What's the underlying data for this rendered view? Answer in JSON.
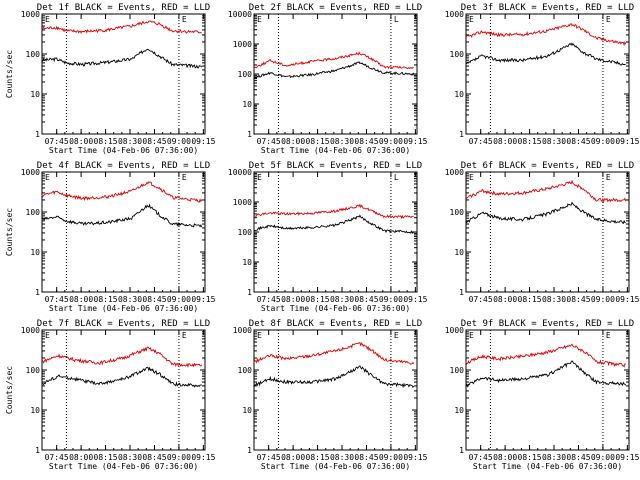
{
  "colors": {
    "events": "#000000",
    "lld": "#e00000",
    "axes": "#000000"
  },
  "chart_data": [
    {
      "type": "line",
      "title": "Det 1f BLACK = Events, RED = LLD",
      "xlabel": "Start Time (04-Feb-06 07:36:00)",
      "ylabel": "Counts/sec",
      "x_ticks": [
        "07:45",
        "08:00",
        "08:15",
        "08:30",
        "08:45",
        "09:00",
        "09:15"
      ],
      "y_ticks": [
        "1",
        "10",
        "100",
        "1000"
      ],
      "ylim": [
        1,
        1000
      ],
      "log_y": true,
      "markers": [
        "07:51",
        "09:00"
      ],
      "corner_labels": [
        "E",
        "E"
      ],
      "series": [
        {
          "name": "Events",
          "values": [
            [
              0,
              70
            ],
            [
              9,
              75
            ],
            [
              15,
              60
            ],
            [
              25,
              55
            ],
            [
              40,
              62
            ],
            [
              55,
              75
            ],
            [
              65,
              140
            ],
            [
              72,
              90
            ],
            [
              80,
              55
            ],
            [
              98,
              48
            ]
          ]
        },
        {
          "name": "LLD",
          "values": [
            [
              0,
              430
            ],
            [
              9,
              460
            ],
            [
              15,
              380
            ],
            [
              25,
              360
            ],
            [
              40,
              400
            ],
            [
              55,
              500
            ],
            [
              65,
              650
            ],
            [
              72,
              560
            ],
            [
              80,
              380
            ],
            [
              98,
              350
            ]
          ]
        }
      ]
    },
    {
      "type": "line",
      "title": "Det 2f BLACK = Events, RED = LLD",
      "xlabel": "Start Time (04-Feb-06 07:36:00)",
      "ylabel": "",
      "x_ticks": [
        "07:45",
        "08:00",
        "08:15",
        "08:30",
        "08:45",
        "09:00",
        "09:15"
      ],
      "y_ticks": [
        "1",
        "10",
        "100",
        "1000",
        "10000"
      ],
      "ylim": [
        1,
        10000
      ],
      "log_y": true,
      "markers": [
        "07:51",
        "09:00"
      ],
      "corner_labels": [
        "E",
        "L"
      ],
      "series": [
        {
          "name": "Events",
          "values": [
            [
              0,
              75
            ],
            [
              10,
              110
            ],
            [
              20,
              80
            ],
            [
              35,
              95
            ],
            [
              50,
              130
            ],
            [
              65,
              240
            ],
            [
              72,
              160
            ],
            [
              80,
              110
            ],
            [
              98,
              100
            ]
          ]
        },
        {
          "name": "LLD",
          "values": [
            [
              0,
              160
            ],
            [
              10,
              280
            ],
            [
              20,
              190
            ],
            [
              35,
              260
            ],
            [
              50,
              330
            ],
            [
              65,
              500
            ],
            [
              72,
              320
            ],
            [
              80,
              170
            ],
            [
              98,
              160
            ]
          ]
        }
      ]
    },
    {
      "type": "line",
      "title": "Det 3f BLACK = Events, RED = LLD",
      "xlabel": "",
      "ylabel": "",
      "x_ticks": [
        "07:45",
        "08:00",
        "08:15",
        "08:30",
        "08:45",
        "09:00",
        "09:15"
      ],
      "y_ticks": [
        "1",
        "10",
        "100",
        "1000"
      ],
      "ylim": [
        1,
        1000
      ],
      "log_y": true,
      "markers": [
        "07:51",
        "09:00"
      ],
      "corner_labels": [
        "E",
        "E"
      ],
      "series": [
        {
          "name": "Events",
          "values": [
            [
              0,
              55
            ],
            [
              10,
              90
            ],
            [
              20,
              70
            ],
            [
              35,
              70
            ],
            [
              50,
              90
            ],
            [
              65,
              180
            ],
            [
              72,
              110
            ],
            [
              80,
              75
            ],
            [
              98,
              55
            ]
          ]
        },
        {
          "name": "LLD",
          "values": [
            [
              0,
              260
            ],
            [
              10,
              360
            ],
            [
              20,
              300
            ],
            [
              35,
              310
            ],
            [
              50,
              380
            ],
            [
              65,
              560
            ],
            [
              72,
              400
            ],
            [
              80,
              250
            ],
            [
              98,
              180
            ]
          ]
        }
      ]
    },
    {
      "type": "line",
      "title": "Det 4f BLACK = Events, RED = LLD",
      "xlabel": "Start Time (04-Feb-06 07:36:00)",
      "ylabel": "Counts/sec",
      "x_ticks": [
        "07:45",
        "08:00",
        "08:15",
        "08:30",
        "08:45",
        "09:00",
        "09:15"
      ],
      "y_ticks": [
        "1",
        "10",
        "100",
        "1000"
      ],
      "ylim": [
        1,
        1000
      ],
      "log_y": true,
      "markers": [
        "07:51",
        "09:00"
      ],
      "corner_labels": [
        "E",
        "E"
      ],
      "series": [
        {
          "name": "Events",
          "values": [
            [
              0,
              65
            ],
            [
              9,
              75
            ],
            [
              15,
              60
            ],
            [
              25,
              50
            ],
            [
              40,
              55
            ],
            [
              55,
              70
            ],
            [
              65,
              150
            ],
            [
              72,
              85
            ],
            [
              80,
              50
            ],
            [
              98,
              45
            ]
          ]
        },
        {
          "name": "LLD",
          "values": [
            [
              0,
              260
            ],
            [
              9,
              320
            ],
            [
              15,
              260
            ],
            [
              25,
              220
            ],
            [
              40,
              240
            ],
            [
              55,
              330
            ],
            [
              65,
              560
            ],
            [
              72,
              400
            ],
            [
              80,
              230
            ],
            [
              98,
              190
            ]
          ]
        }
      ]
    },
    {
      "type": "line",
      "title": "Det 5f BLACK = Events, RED = LLD",
      "xlabel": "Start Time (04-Feb-06 07:36:00)",
      "ylabel": "",
      "x_ticks": [
        "07:45",
        "08:00",
        "08:15",
        "08:30",
        "08:45",
        "09:00",
        "09:15"
      ],
      "y_ticks": [
        "1",
        "10",
        "100",
        "1000",
        "10000"
      ],
      "ylim": [
        1,
        10000
      ],
      "log_y": true,
      "markers": [
        "07:51",
        "09:00"
      ],
      "corner_labels": [
        "E",
        "L"
      ],
      "series": [
        {
          "name": "Events",
          "values": [
            [
              0,
              120
            ],
            [
              10,
              160
            ],
            [
              20,
              130
            ],
            [
              35,
              140
            ],
            [
              50,
              170
            ],
            [
              65,
              330
            ],
            [
              72,
              190
            ],
            [
              80,
              110
            ],
            [
              98,
              100
            ]
          ]
        },
        {
          "name": "LLD",
          "values": [
            [
              0,
              360
            ],
            [
              10,
              430
            ],
            [
              20,
              400
            ],
            [
              35,
              420
            ],
            [
              50,
              500
            ],
            [
              65,
              750
            ],
            [
              72,
              520
            ],
            [
              80,
              330
            ],
            [
              98,
              320
            ]
          ]
        }
      ]
    },
    {
      "type": "line",
      "title": "Det 6f BLACK = Events, RED = LLD",
      "xlabel": "",
      "ylabel": "",
      "x_ticks": [
        "07:45",
        "08:00",
        "08:15",
        "08:30",
        "08:45",
        "09:00",
        "09:15"
      ],
      "y_ticks": [
        "1",
        "10",
        "100",
        "1000"
      ],
      "ylim": [
        1,
        1000
      ],
      "log_y": true,
      "markers": [
        "07:51",
        "09:00"
      ],
      "corner_labels": [
        "E",
        "E"
      ],
      "series": [
        {
          "name": "Events",
          "values": [
            [
              0,
              55
            ],
            [
              10,
              95
            ],
            [
              20,
              70
            ],
            [
              35,
              65
            ],
            [
              50,
              90
            ],
            [
              65,
              160
            ],
            [
              72,
              100
            ],
            [
              80,
              65
            ],
            [
              98,
              55
            ]
          ]
        },
        {
          "name": "LLD",
          "values": [
            [
              0,
              220
            ],
            [
              10,
              340
            ],
            [
              20,
              280
            ],
            [
              35,
              300
            ],
            [
              50,
              380
            ],
            [
              65,
              550
            ],
            [
              72,
              380
            ],
            [
              80,
              200
            ],
            [
              98,
              200
            ]
          ]
        }
      ]
    },
    {
      "type": "line",
      "title": "Det 7f BLACK = Events, RED = LLD",
      "xlabel": "Start Time (04-Feb-06 07:36:00)",
      "ylabel": "Counts/sec",
      "x_ticks": [
        "07:45",
        "08:00",
        "08:15",
        "08:30",
        "08:45",
        "09:00",
        "09:15"
      ],
      "y_ticks": [
        "1",
        "10",
        "100",
        "1000"
      ],
      "ylim": [
        1,
        1000
      ],
      "log_y": true,
      "markers": [
        "07:51",
        "09:00"
      ],
      "corner_labels": [
        "E",
        "E"
      ],
      "series": [
        {
          "name": "Events",
          "values": [
            [
              0,
              45
            ],
            [
              10,
              70
            ],
            [
              20,
              60
            ],
            [
              35,
              45
            ],
            [
              50,
              60
            ],
            [
              65,
              110
            ],
            [
              72,
              80
            ],
            [
              80,
              45
            ],
            [
              98,
              40
            ]
          ]
        },
        {
          "name": "LLD",
          "values": [
            [
              0,
              160
            ],
            [
              10,
              230
            ],
            [
              20,
              180
            ],
            [
              35,
              150
            ],
            [
              50,
              200
            ],
            [
              65,
              350
            ],
            [
              72,
              260
            ],
            [
              80,
              140
            ],
            [
              98,
              130
            ]
          ]
        }
      ]
    },
    {
      "type": "line",
      "title": "Det 8f BLACK = Events, RED = LLD",
      "xlabel": "Start Time (04-Feb-06 07:36:00)",
      "ylabel": "",
      "x_ticks": [
        "07:45",
        "08:00",
        "08:15",
        "08:30",
        "08:45",
        "09:00",
        "09:15"
      ],
      "y_ticks": [
        "1",
        "10",
        "100",
        "1000"
      ],
      "ylim": [
        1,
        1000
      ],
      "log_y": true,
      "markers": [
        "07:51",
        "09:00"
      ],
      "corner_labels": [
        "E",
        "E"
      ],
      "series": [
        {
          "name": "Events",
          "values": [
            [
              0,
              40
            ],
            [
              10,
              60
            ],
            [
              20,
              50
            ],
            [
              35,
              50
            ],
            [
              50,
              60
            ],
            [
              65,
              120
            ],
            [
              72,
              75
            ],
            [
              80,
              45
            ],
            [
              98,
              40
            ]
          ]
        },
        {
          "name": "LLD",
          "values": [
            [
              0,
              160
            ],
            [
              10,
              230
            ],
            [
              20,
              190
            ],
            [
              35,
              230
            ],
            [
              50,
              300
            ],
            [
              65,
              460
            ],
            [
              72,
              320
            ],
            [
              80,
              180
            ],
            [
              98,
              150
            ]
          ]
        }
      ]
    },
    {
      "type": "line",
      "title": "Det 9f BLACK = Events, RED = LLD",
      "xlabel": "Start Time (04-Feb-06 07:36:00)",
      "ylabel": "",
      "x_ticks": [
        "07:45",
        "08:00",
        "08:15",
        "08:30",
        "08:45",
        "09:00",
        "09:15"
      ],
      "y_ticks": [
        "1",
        "10",
        "100",
        "1000"
      ],
      "ylim": [
        1,
        1000
      ],
      "log_y": true,
      "markers": [
        "07:51",
        "09:00"
      ],
      "corner_labels": [
        "E",
        "E"
      ],
      "series": [
        {
          "name": "Events",
          "values": [
            [
              0,
              40
            ],
            [
              10,
              65
            ],
            [
              20,
              55
            ],
            [
              35,
              60
            ],
            [
              50,
              75
            ],
            [
              65,
              160
            ],
            [
              72,
              90
            ],
            [
              80,
              50
            ],
            [
              98,
              45
            ]
          ]
        },
        {
          "name": "LLD",
          "values": [
            [
              0,
              150
            ],
            [
              10,
              220
            ],
            [
              20,
              190
            ],
            [
              35,
              220
            ],
            [
              50,
              280
            ],
            [
              65,
              420
            ],
            [
              72,
              300
            ],
            [
              80,
              160
            ],
            [
              98,
              130
            ]
          ]
        }
      ]
    }
  ]
}
